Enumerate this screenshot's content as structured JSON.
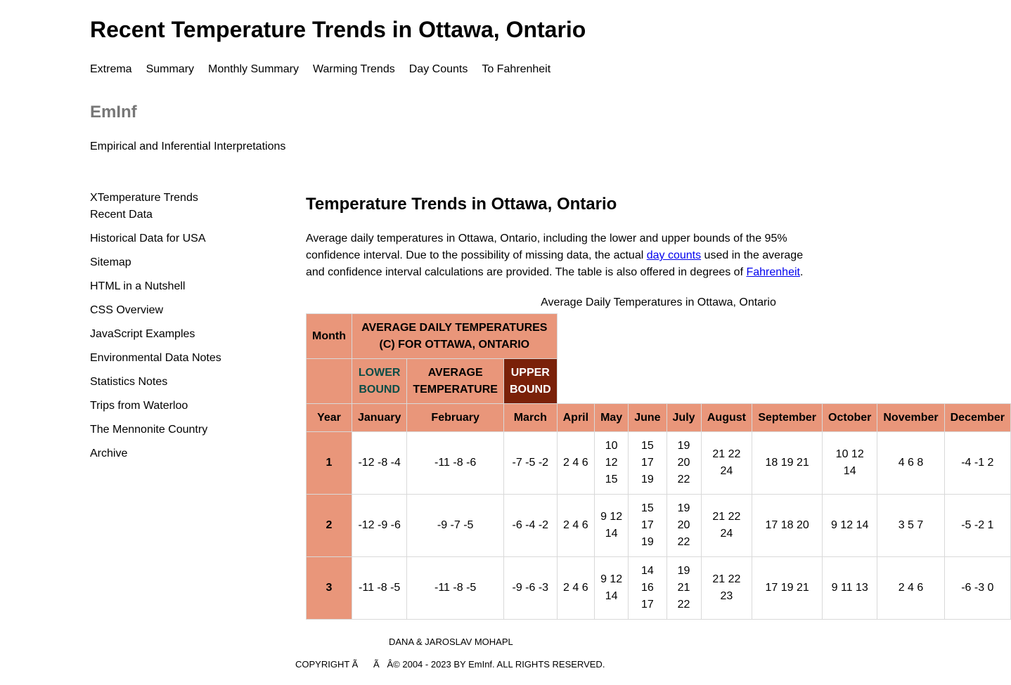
{
  "page": {
    "title": "Recent Temperature Trends in Ottawa, Ontario"
  },
  "topnav": [
    "Extrema",
    "Summary",
    "Monthly Summary",
    "Warming Trends",
    "Day Counts",
    "To Fahrenheit"
  ],
  "brand": {
    "name": "EmInf",
    "tagline": "Empirical and Inferential Interpretations"
  },
  "sidebar": {
    "items": [
      "XTemperature Trends\nRecent Data",
      "Historical Data for USA",
      "Sitemap",
      "HTML in a Nutshell",
      "CSS Overview",
      "JavaScript Examples",
      "Environmental Data Notes",
      "Statistics Notes",
      "Trips from Waterloo",
      "The Mennonite Country",
      "Archive"
    ]
  },
  "main": {
    "heading": "Temperature Trends in Ottawa, Ontario",
    "intro": {
      "part1": "Average daily temperatures in Ottawa, Ontario, including the lower and upper bounds of the 95% confidence interval. Due to the possibility of missing data, the actual ",
      "link1": "day counts",
      "part2": " used in the average and confidence interval calculations are provided. The table is also offered in degrees of ",
      "link2": "Fahrenheit",
      "part3": "."
    },
    "table_caption": "Average Daily Temperatures in Ottawa, Ontario"
  },
  "table": {
    "month_label": "Month",
    "title_label": "AVERAGE DAILY TEMPERATURES (C) FOR OTTAWA, ONTARIO",
    "legend": {
      "lower": "LOWER BOUND",
      "average": "AVERAGE TEMPERATURE",
      "upper": "UPPER BOUND"
    },
    "year_label": "Year",
    "months": [
      "January",
      "February",
      "March",
      "April",
      "May",
      "June",
      "July",
      "August",
      "September",
      "October",
      "November",
      "December"
    ],
    "rows": [
      {
        "year": "1",
        "cells": [
          "-12 -8 -4",
          "-11 -8 -6",
          "-7 -5 -2",
          "2 4 6",
          "10 12 15",
          "15 17 19",
          "19 20 22",
          "21 22 24",
          "18 19 21",
          "10 12 14",
          "4 6 8",
          "-4 -1 2"
        ]
      },
      {
        "year": "2",
        "cells": [
          "-12 -9 -6",
          "-9 -7 -5",
          "-6 -4 -2",
          "2 4 6",
          "9 12 14",
          "15 17 19",
          "19 20 22",
          "21 22 24",
          "17 18 20",
          "9 12 14",
          "3 5 7",
          "-5 -2 1"
        ]
      },
      {
        "year": "3",
        "cells": [
          "-11 -8 -5",
          "-11 -8 -5",
          "-9 -6 -3",
          "2 4 6",
          "9 12 14",
          "14 16 17",
          "19 21 22",
          "21 22 23",
          "17 19 21",
          "9 11 13",
          "2 4 6",
          "-6 -3 0"
        ]
      }
    ]
  },
  "footer": {
    "name": "DANA & JAROSLAV MOHAPL",
    "copyright": "COPYRIGHT Ã      Ã   Â© 2004 - 2023 BY EmInf. ALL RIGHTS RESERVED."
  },
  "colors": {
    "header_bg": "#e9967a",
    "upper_bg": "#7a2109",
    "lower_text": "#0b4d47",
    "link": "#0000ee",
    "brand": "#777777"
  }
}
